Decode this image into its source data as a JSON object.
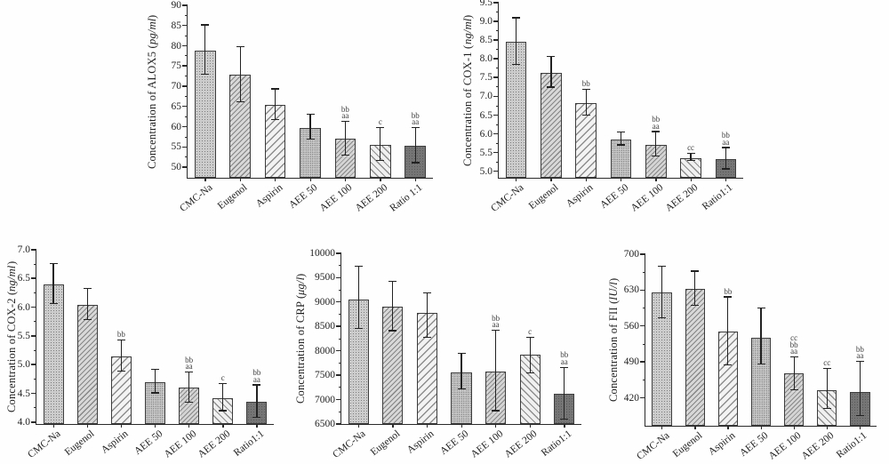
{
  "figure": {
    "background": "#fefefe",
    "colors": {
      "axis": "#2a2a2a",
      "bar_edge": "#3c3c3c",
      "error_bar": "#222222",
      "annotation_text": "#3d3d3d"
    },
    "bar_patterns": [
      "fine-dots-gray",
      "diagonal-hatch-gray",
      "diagonal-hatch-white",
      "fine-dots-gray",
      "diagonal-hatch-gray",
      "back-diagonal-hatch-white",
      "solid-dark-gray"
    ]
  },
  "chart_data": [
    {
      "type": "bar",
      "id": "alox5",
      "title": "",
      "ylabel": "Concentration of ALOX5",
      "unit": "pg/ml",
      "ylim": [
        47.4,
        90
      ],
      "yticks": [
        50,
        55,
        60,
        65,
        70,
        75,
        80,
        85,
        90
      ],
      "ytick_labels": [
        "50",
        "55",
        "60",
        "65",
        "70",
        "75",
        "80",
        "85",
        "90"
      ],
      "grid": false,
      "legend": "none",
      "categories": [
        "CMC-Na",
        "Eugenol",
        "Aspirin",
        "AEE 50",
        "AEE 100",
        "AEE 200",
        "Ratio 1:1"
      ],
      "values": [
        78.8,
        72.9,
        65.4,
        59.8,
        57.0,
        55.5,
        55.2
      ],
      "err_low": [
        72.8,
        66.0,
        61.7,
        56.8,
        52.8,
        51.5,
        51.0
      ],
      "err_high": [
        85.0,
        79.6,
        69.2,
        62.9,
        61.2,
        59.6,
        59.7
      ],
      "annotations": [
        [],
        [],
        [],
        [],
        [
          "bb",
          "aa"
        ],
        [
          "c"
        ],
        [
          "bb",
          "aa"
        ]
      ]
    },
    {
      "type": "bar",
      "id": "cox1",
      "title": "",
      "ylabel": "Concentration of COX-1",
      "unit": "ng/ml",
      "ylim": [
        4.83,
        9.5
      ],
      "yticks": [
        5.0,
        5.5,
        6.0,
        6.5,
        7.0,
        7.5,
        8.0,
        8.5,
        9.0,
        9.5
      ],
      "ytick_labels": [
        "5.0",
        "5.5",
        "6.0",
        "6.5",
        "7.0",
        "7.5",
        "8.0",
        "8.5",
        "9.0",
        "9.5"
      ],
      "grid": false,
      "legend": "none",
      "categories": [
        "CMC-Na",
        "Eugenol",
        "Aspirin",
        "AEE 50",
        "AEE 100",
        "AEE 200",
        "Ratio1:1"
      ],
      "values": [
        8.46,
        7.63,
        6.82,
        5.86,
        5.71,
        5.36,
        5.33
      ],
      "err_low": [
        7.83,
        7.23,
        6.48,
        5.69,
        5.39,
        5.27,
        5.05
      ],
      "err_high": [
        9.08,
        8.05,
        7.18,
        6.04,
        6.05,
        5.47,
        5.62
      ],
      "annotations": [
        [],
        [],
        [
          "bb"
        ],
        [],
        [
          "bb",
          "aa"
        ],
        [
          "cc"
        ],
        [
          "bb",
          "aa"
        ]
      ]
    },
    {
      "type": "bar",
      "id": "cox2",
      "title": "",
      "ylabel": "Concentration of COX-2",
      "unit": "ng/ml",
      "ylim": [
        3.97,
        7.0
      ],
      "yticks": [
        4.0,
        4.5,
        5.0,
        5.5,
        6.0,
        6.5,
        7.0
      ],
      "ytick_labels": [
        "4.0",
        "4.5",
        "5.0",
        "5.5",
        "6.0",
        "6.5",
        "7.0"
      ],
      "grid": false,
      "legend": "none",
      "categories": [
        "CMC-Na",
        "Eugenol",
        "Aspirin",
        "AEE 50",
        "AEE 100",
        "AEE 200",
        "Ratio1:1"
      ],
      "values": [
        6.4,
        6.04,
        5.15,
        4.7,
        4.6,
        4.42,
        4.36
      ],
      "err_low": [
        6.05,
        5.78,
        4.88,
        4.5,
        4.34,
        4.19,
        4.08
      ],
      "err_high": [
        6.75,
        6.32,
        5.42,
        4.91,
        4.86,
        4.66,
        4.64
      ],
      "annotations": [
        [],
        [],
        [
          "bb"
        ],
        [],
        [
          "bb",
          "aa"
        ],
        [
          "c"
        ],
        [
          "bb",
          "aa"
        ]
      ]
    },
    {
      "type": "bar",
      "id": "crp",
      "title": "",
      "ylabel": "Concentration of CRP",
      "unit": "μg/l",
      "ylim": [
        6500,
        10000
      ],
      "yticks": [
        6500,
        7000,
        7500,
        8000,
        8500,
        9000,
        9500,
        10000
      ],
      "ytick_labels": [
        "6500",
        "7000",
        "7500",
        "8000",
        "8500",
        "9000",
        "9500",
        "10000"
      ],
      "grid": false,
      "legend": "none",
      "categories": [
        "CMC-Na",
        "Eugenol",
        "Aspirin",
        "AEE 50",
        "AEE 100",
        "AEE 200",
        "Ratio1:1"
      ],
      "values": [
        9050,
        8910,
        8780,
        7560,
        7580,
        7920,
        7120
      ],
      "err_low": [
        8450,
        8400,
        8270,
        7210,
        6760,
        7540,
        6590
      ],
      "err_high": [
        9730,
        9420,
        9180,
        7940,
        8410,
        8270,
        7650
      ],
      "annotations": [
        [],
        [],
        [],
        [],
        [
          "bb",
          "aa"
        ],
        [
          "c"
        ],
        [
          "bb",
          "aa"
        ]
      ]
    },
    {
      "type": "bar",
      "id": "fii",
      "title": "",
      "ylabel": "Concentration of FII",
      "unit": "IU/l",
      "ylim": [
        366,
        700
      ],
      "yticks": [
        420,
        490,
        560,
        630,
        700
      ],
      "ytick_labels": [
        "420",
        "490",
        "560",
        "630",
        "700"
      ],
      "grid": false,
      "legend": "none",
      "categories": [
        "CMC-Na",
        "Eugenol",
        "Aspirin",
        "AEE 50",
        "AEE 100",
        "AEE 200",
        "Ratio1:1"
      ],
      "values": [
        625,
        633,
        549,
        537,
        468,
        435,
        432
      ],
      "err_low": [
        575,
        600,
        483,
        485,
        435,
        399,
        385
      ],
      "err_high": [
        676,
        666,
        616,
        594,
        499,
        477,
        490
      ],
      "annotations": [
        [],
        [],
        [
          "bb"
        ],
        [],
        [
          "cc",
          "bb",
          "aa"
        ],
        [
          "cc"
        ],
        [
          "bb",
          "aa"
        ]
      ]
    }
  ]
}
